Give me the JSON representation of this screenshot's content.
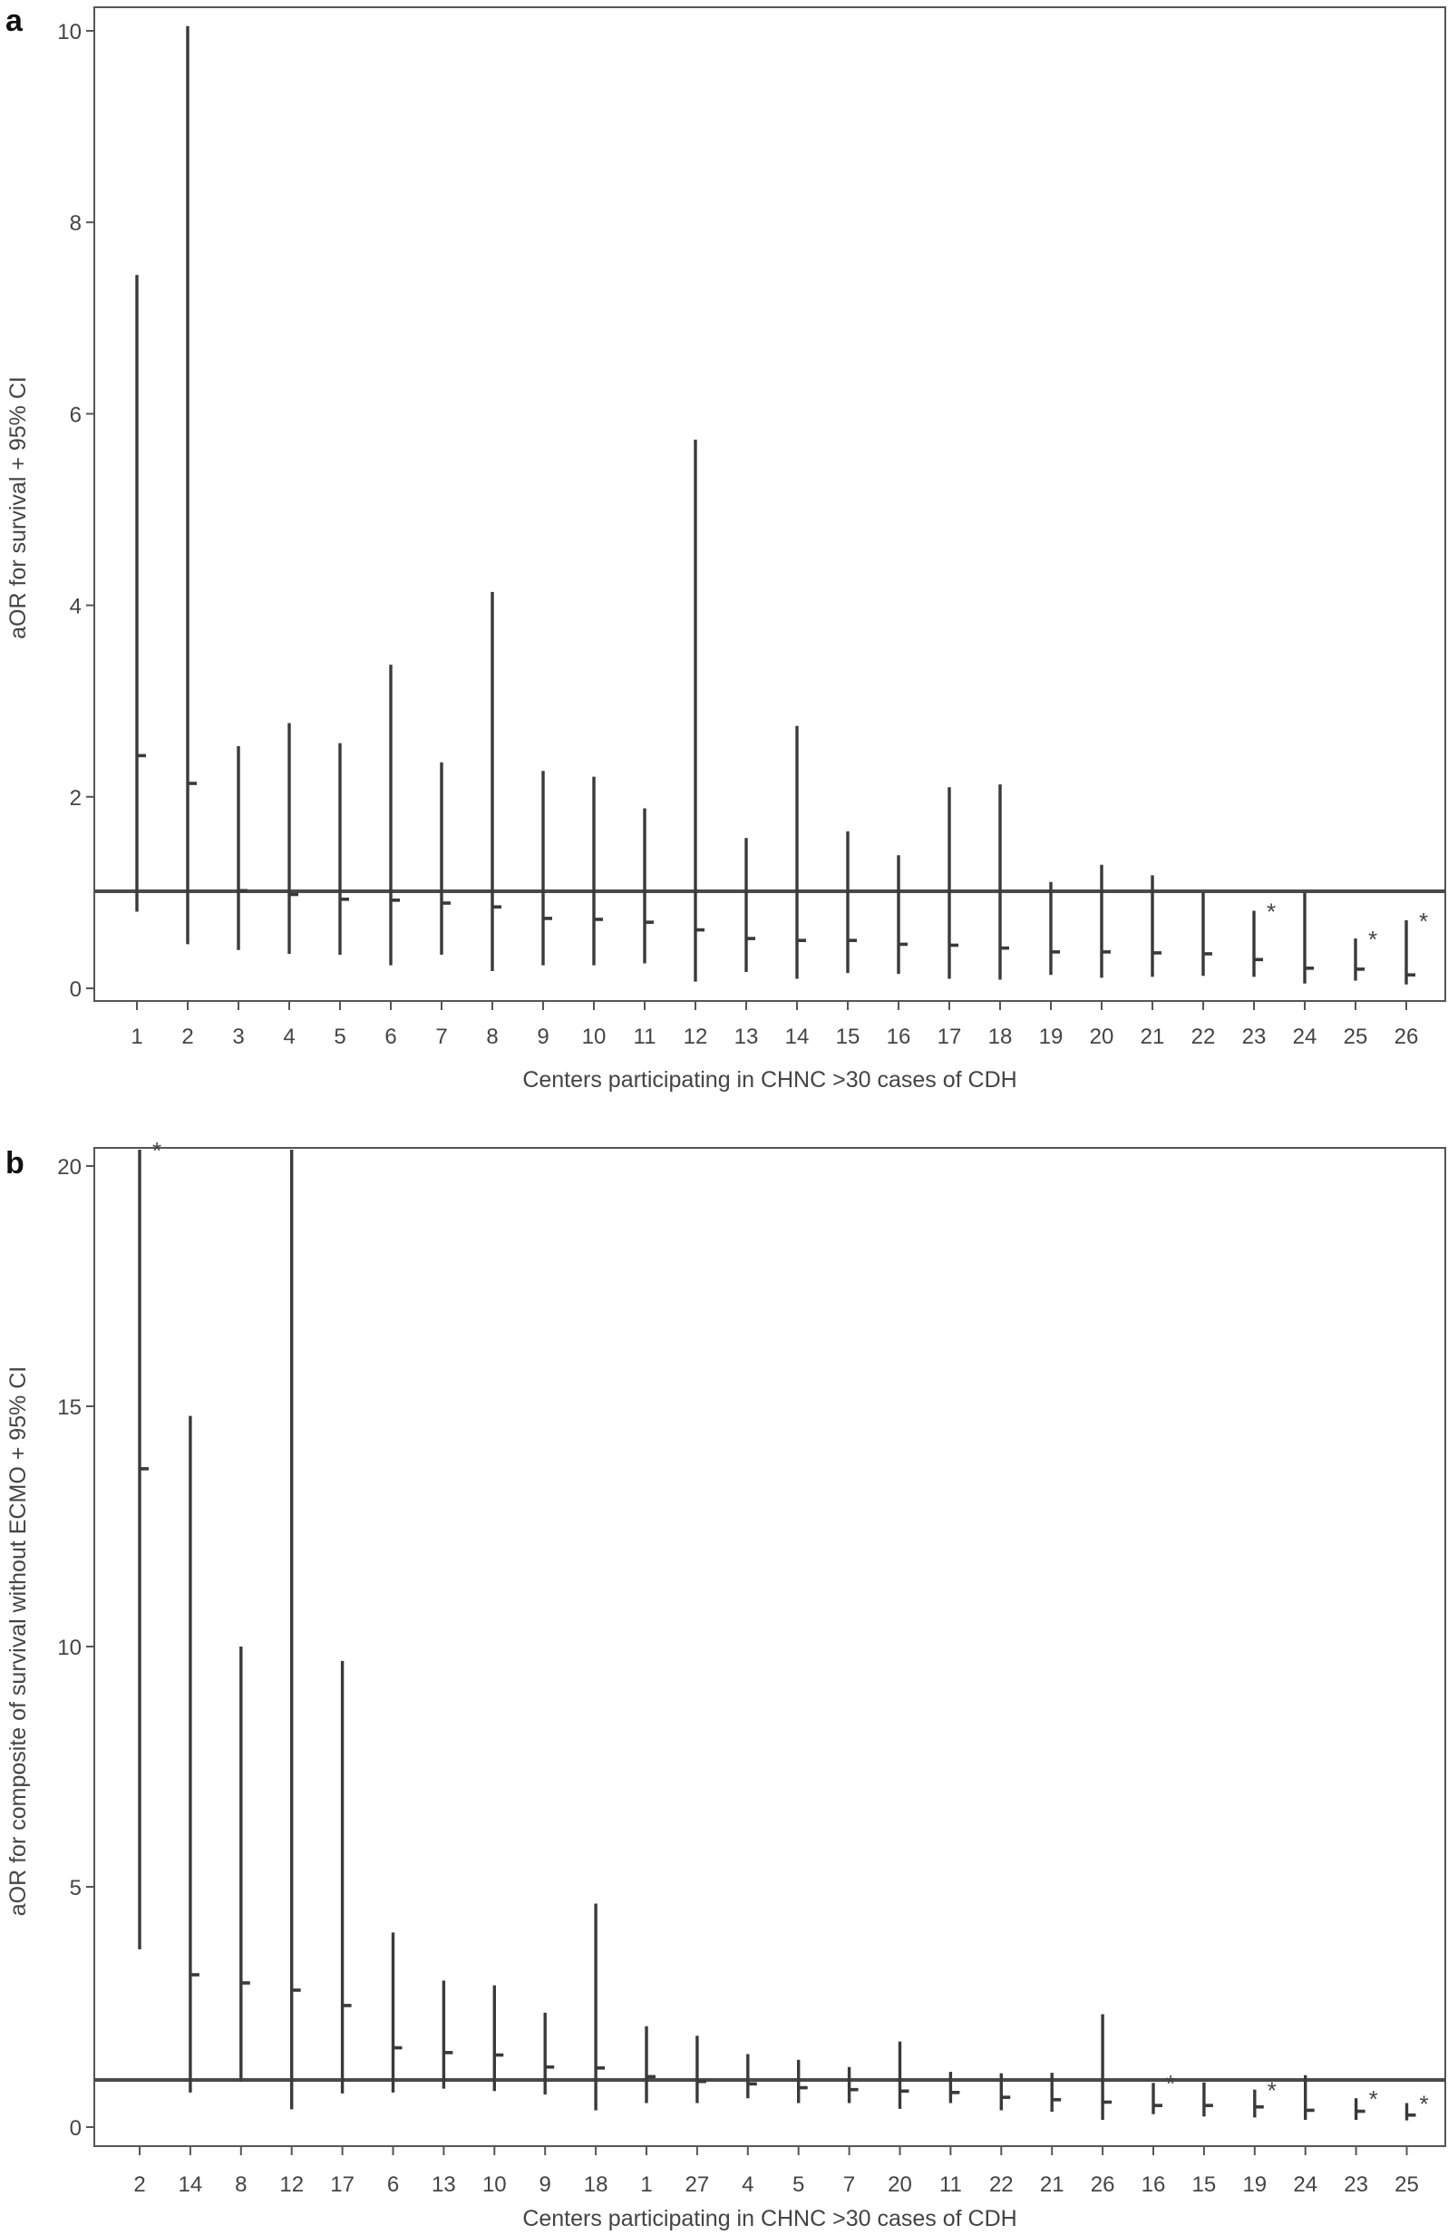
{
  "chart_data": [
    {
      "type": "errorbar",
      "panel": "a",
      "xlabel": "Centers participating in CHNC >30 cases of CDH",
      "ylabel": "aOR for survival + 95% CI",
      "ylim": [
        0,
        10
      ],
      "yticks": [
        0,
        2,
        4,
        6,
        8,
        10
      ],
      "reference_line": 1,
      "categories": [
        "1",
        "2",
        "3",
        "4",
        "5",
        "6",
        "7",
        "8",
        "9",
        "10",
        "11",
        "12",
        "13",
        "14",
        "15",
        "16",
        "17",
        "18",
        "19",
        "20",
        "21",
        "22",
        "23",
        "24",
        "25",
        "26"
      ],
      "estimates": [
        2.43,
        2.14,
        1.02,
        0.98,
        0.93,
        0.92,
        0.89,
        0.85,
        0.73,
        0.72,
        0.69,
        0.61,
        0.52,
        0.5,
        0.5,
        0.46,
        0.45,
        0.42,
        0.38,
        0.38,
        0.37,
        0.36,
        0.3,
        0.21,
        0.2,
        0.14
      ],
      "lower": [
        0.8,
        0.46,
        0.4,
        0.36,
        0.35,
        0.24,
        0.35,
        0.18,
        0.24,
        0.24,
        0.26,
        0.07,
        0.17,
        0.1,
        0.16,
        0.15,
        0.1,
        0.09,
        0.14,
        0.11,
        0.12,
        0.13,
        0.12,
        0.05,
        0.08,
        0.04
      ],
      "upper": [
        7.45,
        10.05,
        2.53,
        2.77,
        2.56,
        3.38,
        2.36,
        4.14,
        2.27,
        2.21,
        1.88,
        5.73,
        1.57,
        2.74,
        1.64,
        1.39,
        2.1,
        2.13,
        1.11,
        1.29,
        1.18,
        1.0,
        0.81,
        1.0,
        0.52,
        0.71
      ],
      "significant": [
        "23",
        "25",
        "26"
      ],
      "annotation": "*"
    },
    {
      "type": "errorbar",
      "panel": "b",
      "xlabel": "Centers participating in CHNC >30 cases of CDH",
      "ylabel": "aOR for composite of survival without ECMO + 95% CI",
      "ylim": [
        0,
        20
      ],
      "yticks": [
        0,
        5,
        10,
        15,
        20
      ],
      "reference_line": 1,
      "categories": [
        "2",
        "14",
        "8",
        "12",
        "17",
        "6",
        "13",
        "10",
        "9",
        "18",
        "1",
        "27",
        "4",
        "5",
        "7",
        "20",
        "11",
        "22",
        "21",
        "26",
        "16",
        "15",
        "19",
        "24",
        "23",
        "25"
      ],
      "estimates": [
        13.7,
        3.17,
        3.0,
        2.85,
        2.53,
        1.65,
        1.55,
        1.5,
        1.25,
        1.23,
        1.05,
        0.95,
        0.9,
        0.82,
        0.78,
        0.75,
        0.72,
        0.62,
        0.57,
        0.52,
        0.45,
        0.45,
        0.42,
        0.35,
        0.33,
        0.25
      ],
      "lower": [
        3.7,
        0.72,
        0.95,
        0.37,
        0.7,
        0.72,
        0.8,
        0.75,
        0.68,
        0.35,
        0.5,
        0.5,
        0.6,
        0.5,
        0.5,
        0.38,
        0.5,
        0.35,
        0.32,
        0.15,
        0.27,
        0.22,
        0.2,
        0.15,
        0.15,
        0.14
      ],
      "upper": [
        20.5,
        14.8,
        10.0,
        20.5,
        9.7,
        4.05,
        3.05,
        2.95,
        2.38,
        4.65,
        2.1,
        1.9,
        1.52,
        1.4,
        1.25,
        1.78,
        1.15,
        1.12,
        1.13,
        2.35,
        0.92,
        0.93,
        0.78,
        1.08,
        0.6,
        0.5
      ],
      "significant": [
        "2",
        "16",
        "19",
        "23",
        "25"
      ],
      "annotation": "*"
    }
  ]
}
